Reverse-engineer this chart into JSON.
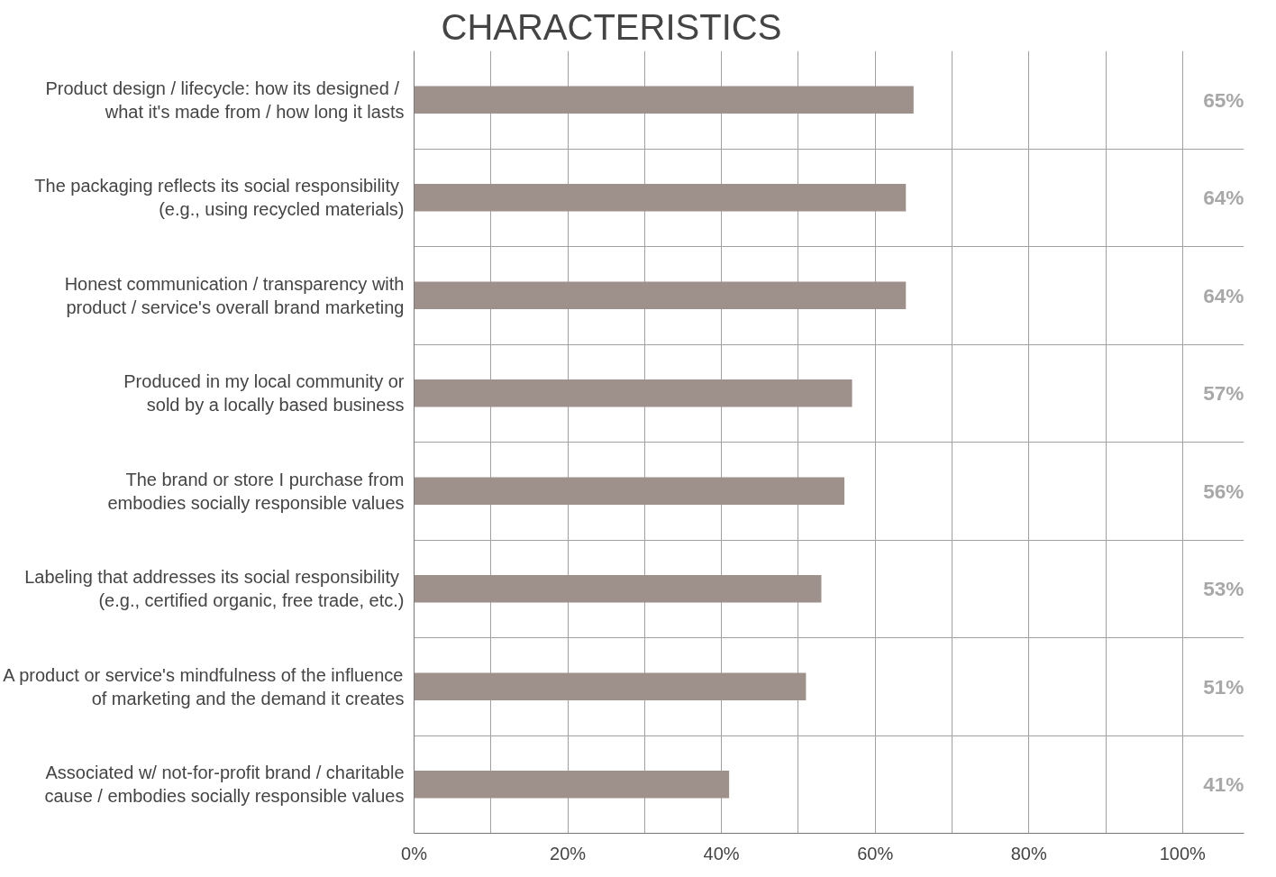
{
  "chart_data": {
    "type": "bar",
    "orientation": "horizontal",
    "title": "CHARACTERISTICS",
    "categories": [
      "Product design / lifecycle: how its  designed /\nwhat it's made from / how long it lasts",
      "The packaging reflects its social  responsibility\n(e.g., using recycled materials)",
      "Honest communication / transparency with\nproduct / service's overall brand marketing",
      "Produced in my local community or\nsold by a locally based business",
      "The brand or store I purchase from\nembodies socially responsible values",
      "Labeling that addresses its social  responsibility\n(e.g., certified organic, free trade, etc.)",
      "A product or service's mindfulness of the influence\nof marketing and the demand it creates",
      "Associated w/ not-for-profit brand / charitable\ncause / embodies socially responsible values"
    ],
    "values": [
      65,
      64,
      64,
      57,
      56,
      53,
      51,
      41
    ],
    "value_labels": [
      "65%",
      "64%",
      "64%",
      "57%",
      "56%",
      "53%",
      "51%",
      "41%"
    ],
    "color": "#9e908b",
    "xlim": [
      0,
      108
    ],
    "xticks": [
      {
        "value": 0,
        "label": "0%"
      },
      {
        "value": 10,
        "label": null
      },
      {
        "value": 20,
        "label": "20%"
      },
      {
        "value": 30,
        "label": null
      },
      {
        "value": 40,
        "label": "40%"
      },
      {
        "value": 50,
        "label": null
      },
      {
        "value": 60,
        "label": "60%"
      },
      {
        "value": 70,
        "label": null
      },
      {
        "value": 80,
        "label": "80%"
      },
      {
        "value": 90,
        "label": null
      },
      {
        "value": 100,
        "label": "100%"
      }
    ],
    "grid": true
  }
}
